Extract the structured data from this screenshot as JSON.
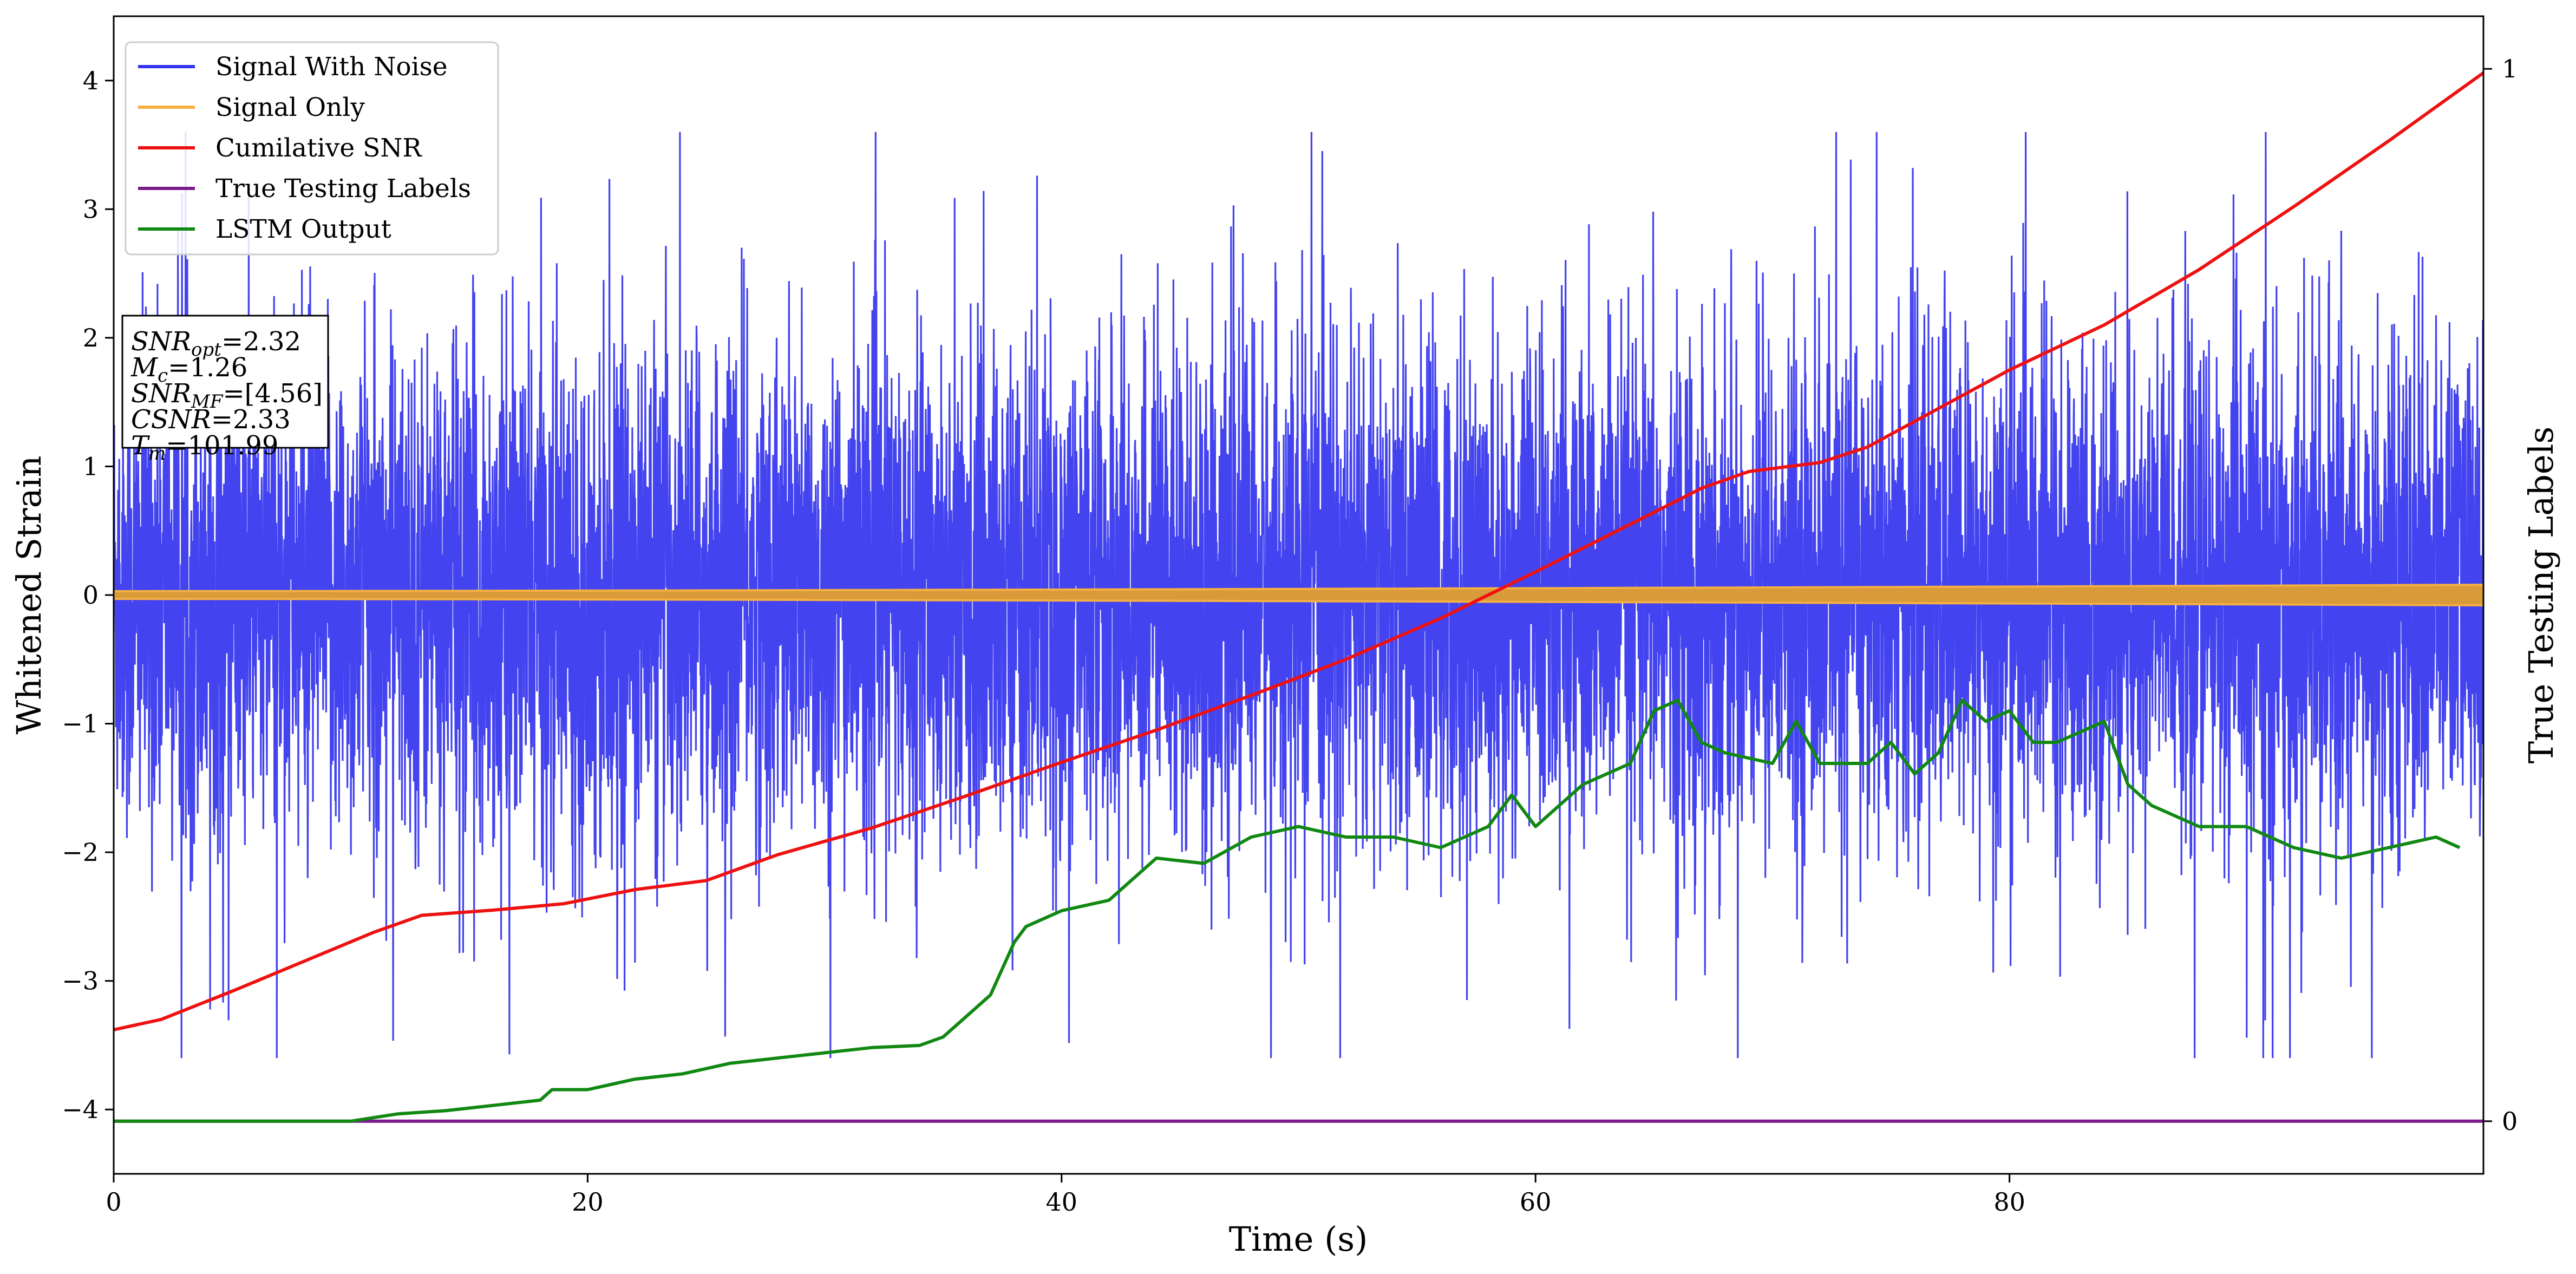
{
  "chart_data": {
    "type": "line",
    "title": "",
    "xlabel": "Time (s)",
    "ylabel": "Whitened Strain",
    "y2label": "True Testing Labels",
    "xlim": [
      0,
      100
    ],
    "ylim": [
      -4.5,
      4.5
    ],
    "y2lim": [
      -0.05,
      1.05
    ],
    "x_ticks": [
      0,
      20,
      40,
      60,
      80
    ],
    "x_tick_labels": [
      "0",
      "20",
      "40",
      "60",
      "80"
    ],
    "y_ticks": [
      4,
      3,
      2,
      1,
      0,
      -1,
      -2,
      -3,
      -4
    ],
    "y_tick_labels": [
      "4",
      "3",
      "2",
      "1",
      "0",
      "−1",
      "−2",
      "−3",
      "−4"
    ],
    "y2_ticks": [
      1,
      0
    ],
    "y2_tick_labels": [
      "1",
      "0"
    ],
    "grid": false,
    "legend_position": "top-left",
    "series": [
      {
        "name": "Signal With Noise",
        "color": "#3333ee",
        "axis": "left",
        "kind": "noise",
        "description_ranges": {
          "typical_min": -2.8,
          "typical_max": 3.6
        }
      },
      {
        "name": "Signal Only",
        "color": "#f5b041",
        "axis": "left",
        "kind": "band",
        "band_halfwidth_start": 0.03,
        "band_halfwidth_end": 0.08
      },
      {
        "name": "Cumilative SNR",
        "color": "#ee1111",
        "axis": "left",
        "x": [
          0,
          2,
          5,
          8,
          11,
          13,
          16,
          19,
          22,
          25,
          28,
          32,
          36,
          40,
          44,
          48,
          52,
          56,
          60,
          64,
          67,
          69,
          72,
          74,
          76,
          78,
          80,
          84,
          88,
          92,
          96,
          100
        ],
        "y": [
          -3.38,
          -3.3,
          -3.08,
          -2.85,
          -2.62,
          -2.49,
          -2.45,
          -2.4,
          -2.29,
          -2.22,
          -2.02,
          -1.81,
          -1.56,
          -1.3,
          -1.05,
          -0.78,
          -0.5,
          -0.18,
          0.18,
          0.55,
          0.83,
          0.96,
          1.03,
          1.15,
          1.35,
          1.55,
          1.75,
          2.1,
          2.53,
          3.02,
          3.53,
          4.06
        ]
      },
      {
        "name": "True Testing Labels",
        "color": "#7b1a8a",
        "axis": "right",
        "x": [
          0,
          100
        ],
        "y": [
          0,
          0
        ]
      },
      {
        "name": "LSTM Output",
        "color": "#118811",
        "axis": "right",
        "x": [
          0,
          5,
          10,
          12,
          14,
          16,
          18,
          18.5,
          20,
          22,
          24,
          26,
          28,
          30,
          32,
          34,
          35,
          36,
          37,
          38,
          38.5,
          40,
          42,
          44,
          46,
          48,
          50,
          52,
          54,
          56,
          58,
          59,
          60,
          62,
          64,
          65,
          66,
          67,
          68,
          70,
          71,
          72,
          74,
          75,
          76,
          77,
          78,
          79,
          80,
          81,
          82,
          83,
          84,
          85,
          86,
          88,
          90,
          92,
          94,
          96,
          98,
          99
        ],
        "y": [
          0.0,
          0.0,
          0.0,
          0.007,
          0.01,
          0.015,
          0.02,
          0.03,
          0.03,
          0.04,
          0.045,
          0.055,
          0.06,
          0.065,
          0.07,
          0.072,
          0.08,
          0.1,
          0.12,
          0.17,
          0.185,
          0.2,
          0.21,
          0.25,
          0.245,
          0.27,
          0.28,
          0.27,
          0.27,
          0.26,
          0.28,
          0.31,
          0.28,
          0.32,
          0.34,
          0.39,
          0.4,
          0.36,
          0.35,
          0.34,
          0.38,
          0.34,
          0.34,
          0.36,
          0.33,
          0.35,
          0.4,
          0.38,
          0.39,
          0.36,
          0.36,
          0.37,
          0.38,
          0.32,
          0.3,
          0.28,
          0.28,
          0.26,
          0.25,
          0.26,
          0.27,
          0.26
        ]
      }
    ],
    "annotation_box": {
      "lines": [
        {
          "base": "SNR",
          "sub": "opt",
          "value": "=2.32"
        },
        {
          "base": "M",
          "sub": "c",
          "value": "=1.26"
        },
        {
          "base": "SNR",
          "sub": "MF",
          "value": "=[4.56]"
        },
        {
          "base": "CSNR",
          "sub": "",
          "value": "=2.33"
        },
        {
          "base": "T",
          "sub": "m",
          "value": "=101.99"
        }
      ]
    }
  }
}
